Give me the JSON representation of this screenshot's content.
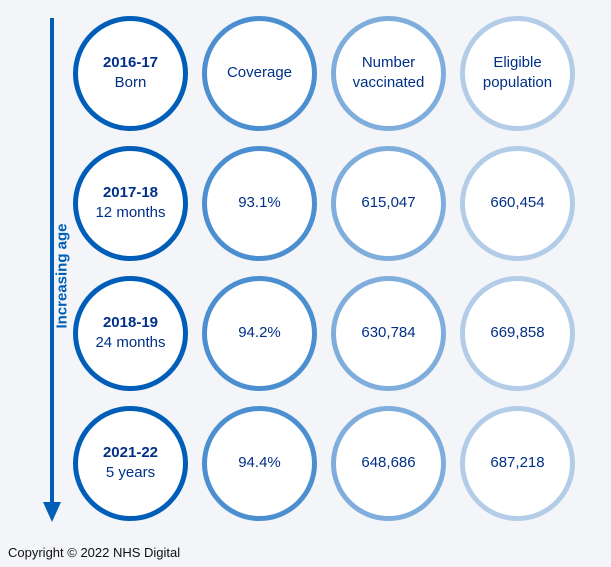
{
  "axis_label": "Increasing age",
  "rows": [
    {
      "year": "2016-17",
      "age": "Born",
      "coverage": "Coverage",
      "number": [
        "Number",
        "vaccinated"
      ],
      "eligible": [
        "Eligible",
        "population"
      ]
    },
    {
      "year": "2017-18",
      "age": "12 months",
      "coverage": "93.1%",
      "number": [
        "615,047"
      ],
      "eligible": [
        "660,454"
      ]
    },
    {
      "year": "2018-19",
      "age": "24 months",
      "coverage": "94.2%",
      "number": [
        "630,784"
      ],
      "eligible": [
        "669,858"
      ]
    },
    {
      "year": "2021-22",
      "age": "5 years",
      "coverage": "94.4%",
      "number": [
        "648,686"
      ],
      "eligible": [
        "687,218"
      ]
    }
  ],
  "copyright": "Copyright © 2022 NHS Digital",
  "colors": {
    "column1": "#005eb8",
    "column2": "#4c8fd0",
    "column3": "#80aedc",
    "column4": "#b3cde8",
    "text": "#003087"
  }
}
